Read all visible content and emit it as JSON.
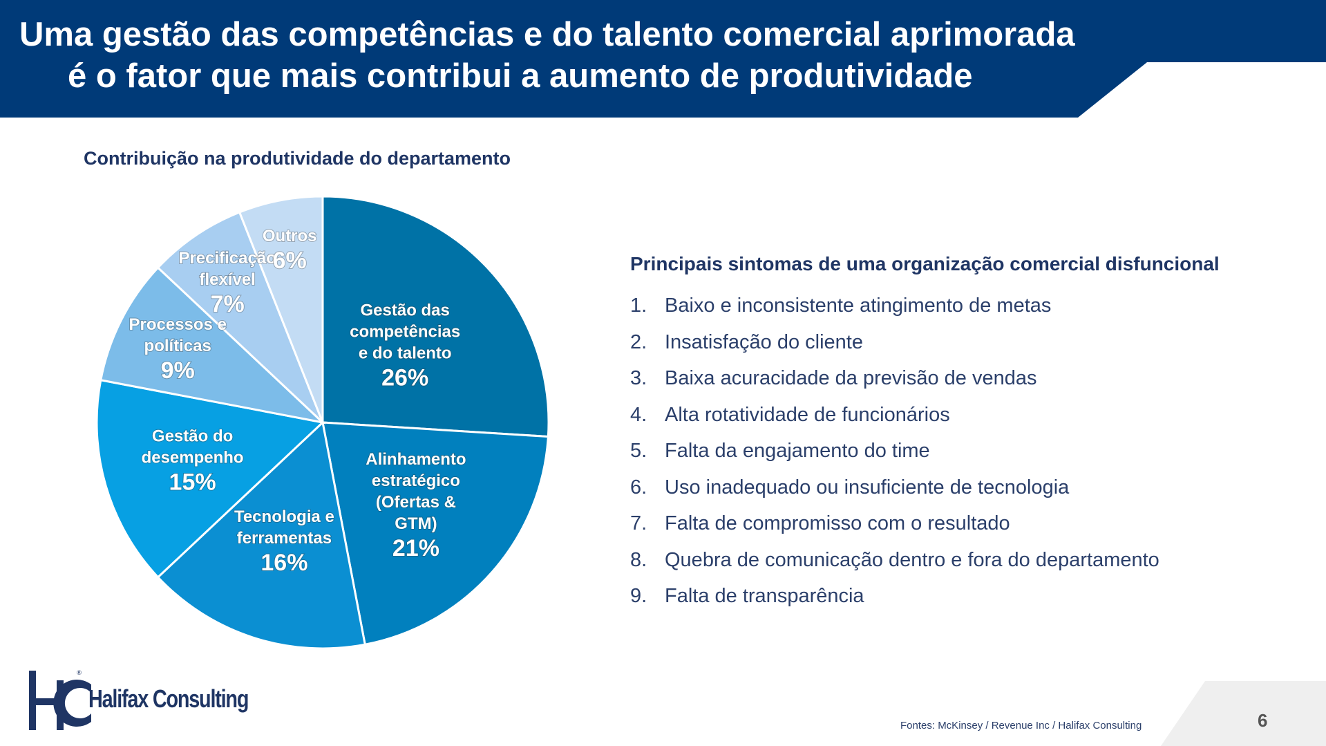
{
  "header": {
    "title_line1": "Uma gestão das competências e do talento comercial aprimorada",
    "title_line2": "é o fator que mais contribui a aumento de produtividade"
  },
  "chart_data": {
    "type": "pie",
    "title": "Contribuição na produtividade do departamento",
    "unit": "%",
    "slices": [
      {
        "label_lines": [
          "Gestão das",
          "competências",
          "e do talento"
        ],
        "value": 26,
        "display": "26%",
        "color": "#0072a6"
      },
      {
        "label_lines": [
          "Alinhamento",
          "estratégico",
          "(Ofertas &",
          "GTM)"
        ],
        "value": 21,
        "display": "21%",
        "color": "#0180be"
      },
      {
        "label_lines": [
          "Tecnologia e",
          "ferramentas"
        ],
        "value": 16,
        "display": "16%",
        "color": "#0b8fd2"
      },
      {
        "label_lines": [
          "Gestão do",
          "desempenho"
        ],
        "value": 15,
        "display": "15%",
        "color": "#07a0e3"
      },
      {
        "label_lines": [
          "Processos e",
          "políticas"
        ],
        "value": 9,
        "display": "9%",
        "color": "#7cbce9"
      },
      {
        "label_lines": [
          "Precificação",
          "flexível"
        ],
        "value": 7,
        "display": "7%",
        "color": "#a8cef1"
      },
      {
        "label_lines": [
          "Outros"
        ],
        "value": 6,
        "display": "6%",
        "color": "#c3dcf4"
      }
    ]
  },
  "symptoms": {
    "title": "Principais sintomas de uma organização comercial disfuncional",
    "items": [
      {
        "num": "1.",
        "text": "Baixo e inconsistente atingimento de metas"
      },
      {
        "num": "2.",
        "text": "Insatisfação do cliente"
      },
      {
        "num": "3.",
        "text": "Baixa acuracidade da previsão de vendas"
      },
      {
        "num": "4.",
        "text": "Alta rotatividade de funcionários"
      },
      {
        "num": "5.",
        "text": "Falta da engajamento do time"
      },
      {
        "num": "6.",
        "text": "Uso inadequado ou insuficiente de tecnologia"
      },
      {
        "num": "7.",
        "text": "Falta de compromisso com o resultado"
      },
      {
        "num": "8.",
        "text": "Quebra de comunicação dentro e fora do departamento"
      },
      {
        "num": "9.",
        "text": "Falta de transparência"
      }
    ]
  },
  "footer": {
    "logo_monogram": "HC",
    "logo_text": "Halifax Consulting",
    "source": "Fontes: McKinsey / Revenue Inc / Halifax Consulting",
    "page_number": "6"
  },
  "colors": {
    "header_bg": "#003a78",
    "brand_navy": "#1f3564"
  }
}
